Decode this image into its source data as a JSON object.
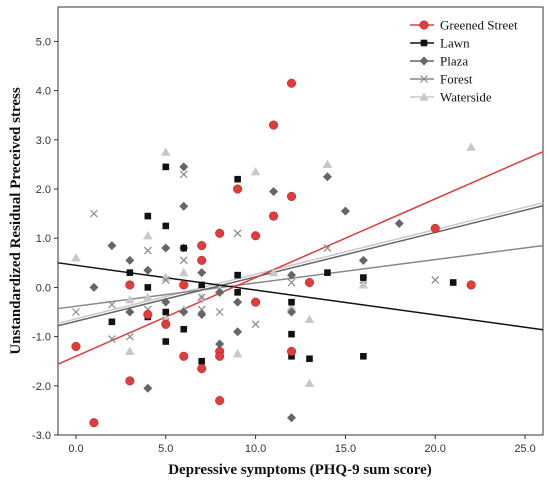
{
  "chart_data": {
    "type": "scatter",
    "xlabel": "Depressive symptoms (PHQ-9 sum score)",
    "ylabel": "Unstandardized Residual Preceived stress",
    "xlim": [
      -1,
      26
    ],
    "ylim": [
      -3.0,
      5.7
    ],
    "xticks": [
      "0.0",
      "5.0",
      "10.0",
      "15.0",
      "20.0",
      "25.0"
    ],
    "xtick_values": [
      0,
      5,
      10,
      15,
      20,
      25
    ],
    "yticks": [
      "-3.0",
      "-2.0",
      "-1.0",
      "0.0",
      "1.0",
      "2.0",
      "3.0",
      "4.0",
      "5.0"
    ],
    "ytick_values": [
      -3,
      -2,
      -1,
      0,
      1,
      2,
      3,
      4,
      5
    ],
    "grid": false,
    "legend_position": "top-right",
    "series": [
      {
        "name": "Greened Street",
        "marker": "circle",
        "color": "#e03c3c",
        "points": [
          [
            0,
            -1.2
          ],
          [
            1,
            -2.75
          ],
          [
            3,
            -1.9
          ],
          [
            3,
            0.05
          ],
          [
            4,
            -0.55
          ],
          [
            5,
            -0.75
          ],
          [
            6,
            -1.4
          ],
          [
            6,
            0.05
          ],
          [
            7,
            0.85
          ],
          [
            7,
            0.55
          ],
          [
            7,
            -1.65
          ],
          [
            8,
            1.1
          ],
          [
            8,
            -1.3
          ],
          [
            8,
            -1.4
          ],
          [
            8,
            -2.3
          ],
          [
            9,
            2.0
          ],
          [
            10,
            1.05
          ],
          [
            10,
            -0.3
          ],
          [
            11,
            3.3
          ],
          [
            11,
            1.45
          ],
          [
            12,
            4.15
          ],
          [
            12,
            1.85
          ],
          [
            12,
            -1.3
          ],
          [
            13,
            0.1
          ],
          [
            20,
            1.2
          ],
          [
            22,
            0.05
          ]
        ],
        "fit": {
          "x": [
            -1,
            26
          ],
          "y": [
            -1.56,
            2.76
          ]
        }
      },
      {
        "name": "Lawn",
        "marker": "square",
        "color": "#111111",
        "points": [
          [
            2,
            -0.7
          ],
          [
            3,
            0.3
          ],
          [
            4,
            1.45
          ],
          [
            4,
            0
          ],
          [
            4,
            -0.6
          ],
          [
            5,
            2.45
          ],
          [
            5,
            1.25
          ],
          [
            5,
            -0.5
          ],
          [
            5,
            -1.1
          ],
          [
            6,
            0.8
          ],
          [
            6,
            -0.85
          ],
          [
            7,
            0.05
          ],
          [
            7,
            -1.5
          ],
          [
            9,
            2.2
          ],
          [
            9,
            0.25
          ],
          [
            9,
            -0.1
          ],
          [
            12,
            -0.3
          ],
          [
            12,
            -0.95
          ],
          [
            12,
            -1.4
          ],
          [
            13,
            -1.45
          ],
          [
            14,
            0.3
          ],
          [
            16,
            0.2
          ],
          [
            16,
            -1.4
          ],
          [
            21,
            0.1
          ]
        ],
        "fit": {
          "x": [
            -1,
            26
          ],
          "y": [
            0.5,
            -0.86
          ]
        }
      },
      {
        "name": "Plaza",
        "marker": "diamond",
        "color": "#666666",
        "points": [
          [
            1,
            0
          ],
          [
            2,
            0.85
          ],
          [
            3,
            0.55
          ],
          [
            3,
            -0.5
          ],
          [
            4,
            0.35
          ],
          [
            4,
            -2.05
          ],
          [
            5,
            0.8
          ],
          [
            5,
            -0.3
          ],
          [
            6,
            2.45
          ],
          [
            6,
            1.65
          ],
          [
            6,
            0.8
          ],
          [
            6,
            -0.5
          ],
          [
            7,
            0.3
          ],
          [
            7,
            -0.55
          ],
          [
            8,
            -0.1
          ],
          [
            8,
            -1.15
          ],
          [
            9,
            -0.3
          ],
          [
            9,
            -0.9
          ],
          [
            10,
            -0.3
          ],
          [
            11,
            1.95
          ],
          [
            12,
            0.25
          ],
          [
            12,
            -0.5
          ],
          [
            12,
            -2.65
          ],
          [
            14,
            2.25
          ],
          [
            15,
            1.55
          ],
          [
            16,
            0.55
          ],
          [
            18,
            1.3
          ]
        ],
        "fit": {
          "x": [
            -1,
            26
          ],
          "y": [
            -0.78,
            1.66
          ]
        }
      },
      {
        "name": "Forest",
        "marker": "x",
        "color": "#888888",
        "points": [
          [
            0,
            -0.5
          ],
          [
            1,
            1.5
          ],
          [
            2,
            -0.35
          ],
          [
            2,
            -1.05
          ],
          [
            3,
            -1.0
          ],
          [
            4,
            0.75
          ],
          [
            4,
            -0.45
          ],
          [
            5,
            0.15
          ],
          [
            5,
            -0.7
          ],
          [
            6,
            2.3
          ],
          [
            6,
            0.55
          ],
          [
            7,
            -0.2
          ],
          [
            7,
            -0.45
          ],
          [
            8,
            -0.5
          ],
          [
            9,
            1.1
          ],
          [
            10,
            -0.75
          ],
          [
            11,
            1.45
          ],
          [
            12,
            0.1
          ],
          [
            14,
            0.8
          ],
          [
            16,
            0.15
          ],
          [
            20,
            0.15
          ]
        ],
        "fit": {
          "x": [
            -1,
            26
          ],
          "y": [
            -0.43,
            0.85
          ]
        }
      },
      {
        "name": "Waterside",
        "marker": "triangle",
        "color": "#c8c8c8",
        "points": [
          [
            0,
            0.6
          ],
          [
            3,
            -0.25
          ],
          [
            3,
            -1.3
          ],
          [
            4,
            1.05
          ],
          [
            4,
            -0.2
          ],
          [
            5,
            2.75
          ],
          [
            5,
            0.2
          ],
          [
            5,
            -0.65
          ],
          [
            6,
            0.3
          ],
          [
            6,
            -0.45
          ],
          [
            7,
            -0.2
          ],
          [
            8,
            -0.05
          ],
          [
            9,
            -1.35
          ],
          [
            10,
            2.35
          ],
          [
            11,
            0.3
          ],
          [
            12,
            -0.4
          ],
          [
            13,
            -0.65
          ],
          [
            13,
            -1.95
          ],
          [
            14,
            2.5
          ],
          [
            16,
            0.05
          ],
          [
            22,
            2.85
          ]
        ],
        "fit": {
          "x": [
            -1,
            26
          ],
          "y": [
            -0.73,
            1.72
          ]
        }
      }
    ]
  }
}
